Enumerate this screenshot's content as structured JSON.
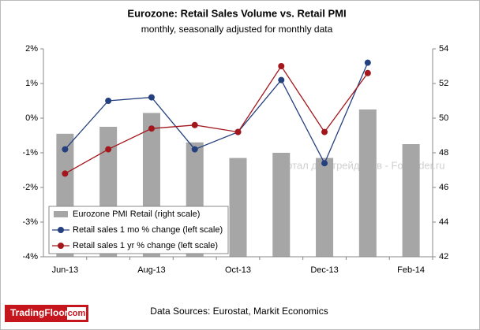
{
  "chart_data": {
    "type": "bar",
    "title": "Eurozone: Retail Sales Volume vs. Retail PMI",
    "subtitle": "monthly, seasonally adjusted for monthly data",
    "categories": [
      "Jun-13",
      null,
      "Aug-13",
      null,
      "Oct-13",
      null,
      "Dec-13",
      null,
      "Feb-14"
    ],
    "series": [
      {
        "name": "Eurozone PMI Retail (right scale)",
        "type": "bar",
        "axis": "y2",
        "color": "#a6a6a6",
        "values": [
          49.1,
          49.5,
          50.3,
          48.6,
          47.7,
          48.0,
          47.7,
          50.5,
          48.5
        ]
      },
      {
        "name": "Retail sales 1 mo % change (left scale)",
        "type": "line",
        "color": "#25407f",
        "values": [
          -0.9,
          0.5,
          0.6,
          -0.9,
          -0.4,
          1.1,
          -1.3,
          1.6,
          null
        ]
      },
      {
        "name": "Retail sales 1 yr % change (left scale)",
        "type": "line",
        "color": "#a3161c",
        "values": [
          -1.6,
          -0.9,
          -0.3,
          -0.2,
          -0.4,
          1.5,
          -0.4,
          1.3,
          null
        ]
      }
    ],
    "ylim": [
      -4,
      2
    ],
    "yticks": [
      {
        "value": -4,
        "label": "-4%"
      },
      {
        "value": -3,
        "label": "-3%"
      },
      {
        "value": -2,
        "label": "-2%"
      },
      {
        "value": -1,
        "label": "-1%"
      },
      {
        "value": 0,
        "label": "0%"
      },
      {
        "value": 1,
        "label": "1%"
      },
      {
        "value": 2,
        "label": "2%"
      }
    ],
    "y2lim": [
      42,
      54
    ],
    "y2ticks": [
      42,
      44,
      46,
      48,
      50,
      52,
      54
    ],
    "legend": "lower-left",
    "watermark": "Портал для трейдеров - Fortrader.ru",
    "source": "Data Sources: Eurostat, Markit Economics",
    "logo": {
      "name": "TradingFloor",
      "domain": "com"
    }
  }
}
